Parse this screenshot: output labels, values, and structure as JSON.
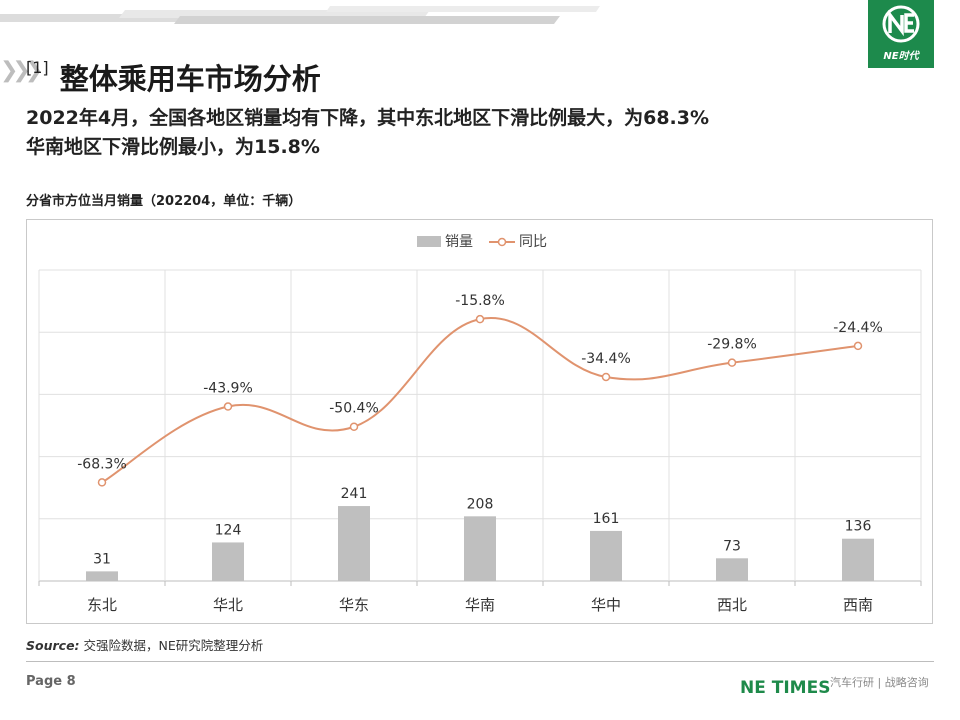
{
  "header": {
    "section_index": "[1]",
    "section_title": "整体乘用车市场分析",
    "headline_line1": "2022年4月，全国各地区销量均有下降，其中东北地区下滑比例最大，为68.3%",
    "headline_line2": "华南地区下滑比例最小，为15.8%"
  },
  "chart_caption": "分省市方位当月销量（202204，单位：千辆）",
  "chart_data": {
    "type": "bar+line",
    "categories": [
      "东北",
      "华北",
      "华东",
      "华南",
      "华中",
      "西北",
      "西南"
    ],
    "series": [
      {
        "name": "销量",
        "type": "bar",
        "values": [
          31,
          124,
          241,
          208,
          161,
          73,
          136
        ],
        "color": "#bfbfbf"
      },
      {
        "name": "同比",
        "type": "line",
        "values": [
          -68.3,
          -43.9,
          -50.4,
          -15.8,
          -34.4,
          -29.8,
          -24.4
        ],
        "labels": [
          "-68.3%",
          "-43.9%",
          "-50.4%",
          "-15.8%",
          "-34.4%",
          "-29.8%",
          "-24.4%"
        ],
        "color": "#e0936e"
      }
    ],
    "bar_axis_range": [
      0,
      1000
    ],
    "line_axis_range": [
      -100,
      0
    ],
    "legend_position": "top-center",
    "grid": true
  },
  "source": {
    "label": "Source:",
    "text": "交强险数据，NE研究院整理分析"
  },
  "footer": {
    "page": "Page 8",
    "brand": "NE TIMES",
    "tagline": "汽车行研 | 战略咨询"
  },
  "logo": {
    "text": "NE时代",
    "color": "#1d8a4c"
  }
}
